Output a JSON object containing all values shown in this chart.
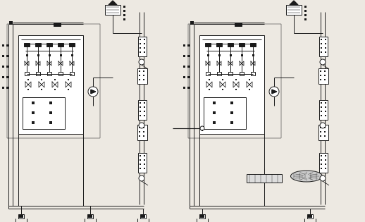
{
  "bg_color": "#ede9e2",
  "lc": "#1a1a1a",
  "lw": 0.7,
  "fig_width": 5.18,
  "fig_height": 3.15,
  "dpi": 100,
  "systems": [
    {
      "ox": 8,
      "variant": 0
    },
    {
      "ox": 265,
      "variant": 1
    }
  ]
}
